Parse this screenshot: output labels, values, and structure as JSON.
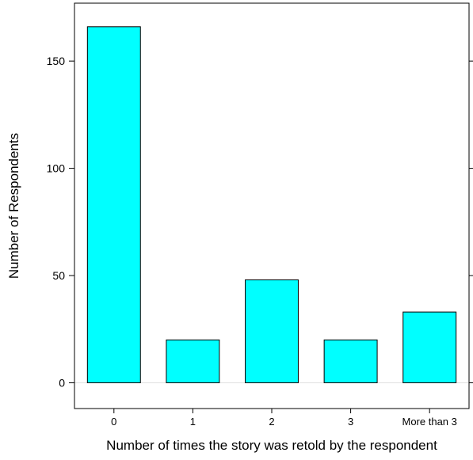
{
  "chart_data": {
    "type": "bar",
    "title": "",
    "xlabel": "Number of times the story was retold by the respondent",
    "ylabel": "Number of Respondents",
    "categories": [
      "0",
      "1",
      "2",
      "3",
      "More than 3"
    ],
    "values": [
      166,
      20,
      48,
      20,
      33
    ],
    "ylim": [
      -12,
      177
    ],
    "yticks": [
      0,
      50,
      100,
      150
    ],
    "grid": false,
    "bar_color": "#00ffff",
    "bar_outline": "#000000",
    "zero_line_color": "#e0e0e0"
  }
}
